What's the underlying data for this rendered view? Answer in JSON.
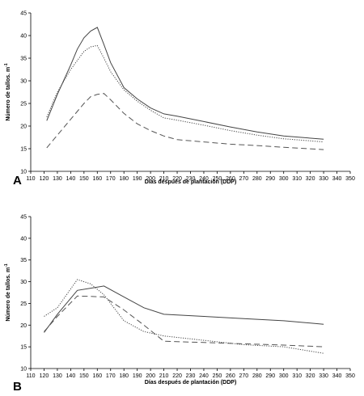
{
  "chart_data": [
    {
      "panel_label": "A",
      "type": "line",
      "xlabel": "Días después de plantación (DDP)",
      "ylabel": "Número de tallos. m-1",
      "ylabel_main": "Número de tallos. m",
      "ylabel_sup": "-1",
      "xlim": [
        110,
        350
      ],
      "ylim": [
        10,
        45
      ],
      "xticks": [
        110,
        120,
        130,
        140,
        150,
        160,
        170,
        180,
        190,
        200,
        210,
        220,
        230,
        240,
        250,
        260,
        270,
        280,
        290,
        300,
        310,
        320,
        330,
        340,
        350
      ],
      "yticks": [
        10,
        15,
        20,
        25,
        30,
        35,
        40,
        45
      ],
      "series": [
        {
          "style": "solid",
          "color": "#444444",
          "x": [
            122,
            130,
            140,
            145,
            150,
            155,
            160,
            165,
            170,
            180,
            190,
            200,
            210,
            220,
            240,
            260,
            280,
            300,
            330
          ],
          "y": [
            21.2,
            27,
            33.5,
            37,
            39.5,
            41,
            41.8,
            38,
            34,
            28.5,
            26,
            24,
            22.7,
            22.2,
            21,
            19.8,
            18.7,
            17.8,
            17.1
          ]
        },
        {
          "style": "dotted",
          "color": "#444444",
          "x": [
            122,
            130,
            140,
            145,
            150,
            155,
            160,
            165,
            170,
            180,
            190,
            200,
            210,
            220,
            240,
            260,
            280,
            300,
            330
          ],
          "y": [
            22,
            27.5,
            32.5,
            34.5,
            36.5,
            37.5,
            37.8,
            35,
            32,
            28,
            25.5,
            23.5,
            21.8,
            21.3,
            20.2,
            19,
            18,
            17.2,
            16.5
          ]
        },
        {
          "style": "dashed",
          "color": "#555555",
          "x": [
            122,
            130,
            140,
            150,
            155,
            160,
            165,
            170,
            180,
            190,
            200,
            210,
            220,
            240,
            260,
            280,
            300,
            330
          ],
          "y": [
            15.2,
            18,
            21.5,
            25,
            26.5,
            27,
            27.2,
            25.8,
            22.8,
            20.5,
            19,
            17.8,
            17,
            16.5,
            16,
            15.7,
            15.3,
            14.8
          ]
        }
      ]
    },
    {
      "panel_label": "B",
      "type": "line",
      "xlabel": "Días después de plantación (DDP)",
      "ylabel": "Número de tallos. m-1",
      "ylabel_main": "Número de tallos. m",
      "ylabel_sup": "-1",
      "xlim": [
        110,
        350
      ],
      "ylim": [
        10,
        45
      ],
      "xticks": [
        110,
        120,
        130,
        140,
        150,
        160,
        170,
        180,
        190,
        200,
        210,
        220,
        230,
        240,
        250,
        260,
        270,
        280,
        290,
        300,
        310,
        320,
        330,
        340,
        350
      ],
      "yticks": [
        10,
        15,
        20,
        25,
        30,
        35,
        40,
        45
      ],
      "series": [
        {
          "style": "solid",
          "color": "#444444",
          "x": [
            120,
            130,
            145,
            155,
            165,
            180,
            195,
            210,
            240,
            270,
            300,
            330
          ],
          "y": [
            18.3,
            22.5,
            28,
            28.5,
            29,
            26.5,
            24,
            22.5,
            22,
            21.5,
            21,
            20.2
          ]
        },
        {
          "style": "dotted",
          "color": "#444444",
          "x": [
            120,
            130,
            145,
            155,
            165,
            180,
            195,
            210,
            240,
            270,
            300,
            330
          ],
          "y": [
            22,
            24,
            30.5,
            29.5,
            27,
            21,
            18.5,
            17.5,
            16.5,
            15.5,
            15,
            13.5
          ]
        },
        {
          "style": "dashed",
          "color": "#555555",
          "x": [
            120,
            130,
            145,
            155,
            165,
            180,
            195,
            210,
            240,
            270,
            300,
            330
          ],
          "y": [
            18.5,
            22,
            26.7,
            26.6,
            26.5,
            23.5,
            20,
            16.3,
            16,
            15.7,
            15.4,
            15
          ]
        }
      ]
    }
  ]
}
